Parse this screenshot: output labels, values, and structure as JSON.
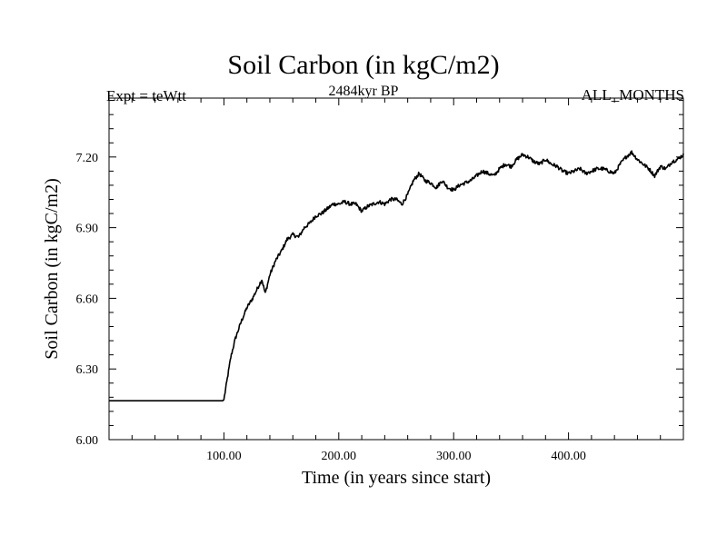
{
  "chart_data": {
    "type": "line",
    "title": "Soil Carbon (in kgC/m2)",
    "left_label": "Expt = teWtt",
    "center_label": "2484kyr BP",
    "right_label": "ALL_MONTHS",
    "xlabel": "Time (in years since start)",
    "ylabel": "Soil Carbon (in kgC/m2)",
    "xlim": [
      0,
      500
    ],
    "ylim": [
      6.0,
      7.45
    ],
    "x_tick_values": [
      100,
      200,
      300,
      400
    ],
    "x_tick_labels": [
      "100.00",
      "200.00",
      "300.00",
      "400.00"
    ],
    "y_tick_values": [
      6.0,
      6.3,
      6.6,
      6.9,
      7.2
    ],
    "y_tick_labels": [
      "6.00",
      "6.30",
      "6.60",
      "6.90",
      "7.20"
    ],
    "series": [
      {
        "name": "Soil Carbon",
        "x": [
          0,
          50,
          99,
          100,
          103,
          106,
          110,
          115,
          120,
          125,
          130,
          133,
          136,
          140,
          145,
          150,
          155,
          160,
          165,
          170,
          175,
          180,
          185,
          190,
          195,
          200,
          205,
          210,
          215,
          220,
          225,
          230,
          235,
          240,
          245,
          250,
          255,
          260,
          265,
          270,
          275,
          280,
          285,
          290,
          295,
          300,
          305,
          310,
          315,
          320,
          325,
          330,
          335,
          340,
          345,
          350,
          355,
          360,
          365,
          370,
          375,
          380,
          385,
          390,
          395,
          400,
          405,
          410,
          415,
          420,
          425,
          430,
          435,
          440,
          445,
          450,
          455,
          460,
          465,
          470,
          475,
          480,
          485,
          490,
          495,
          500
        ],
        "y": [
          6.165,
          6.165,
          6.165,
          6.17,
          6.26,
          6.35,
          6.43,
          6.5,
          6.56,
          6.6,
          6.65,
          6.68,
          6.62,
          6.7,
          6.76,
          6.8,
          6.85,
          6.87,
          6.86,
          6.9,
          6.92,
          6.95,
          6.96,
          6.98,
          7.0,
          7.0,
          7.01,
          7.0,
          7.0,
          6.97,
          6.99,
          7.0,
          7.01,
          7.0,
          7.02,
          7.02,
          7.0,
          7.04,
          7.1,
          7.13,
          7.1,
          7.09,
          7.07,
          7.1,
          7.07,
          7.06,
          7.08,
          7.09,
          7.1,
          7.12,
          7.14,
          7.13,
          7.12,
          7.15,
          7.17,
          7.16,
          7.19,
          7.21,
          7.2,
          7.18,
          7.17,
          7.19,
          7.17,
          7.16,
          7.14,
          7.13,
          7.14,
          7.15,
          7.13,
          7.14,
          7.15,
          7.15,
          7.14,
          7.13,
          7.17,
          7.2,
          7.22,
          7.19,
          7.17,
          7.15,
          7.12,
          7.16,
          7.15,
          7.18,
          7.19,
          7.21
        ]
      }
    ]
  }
}
